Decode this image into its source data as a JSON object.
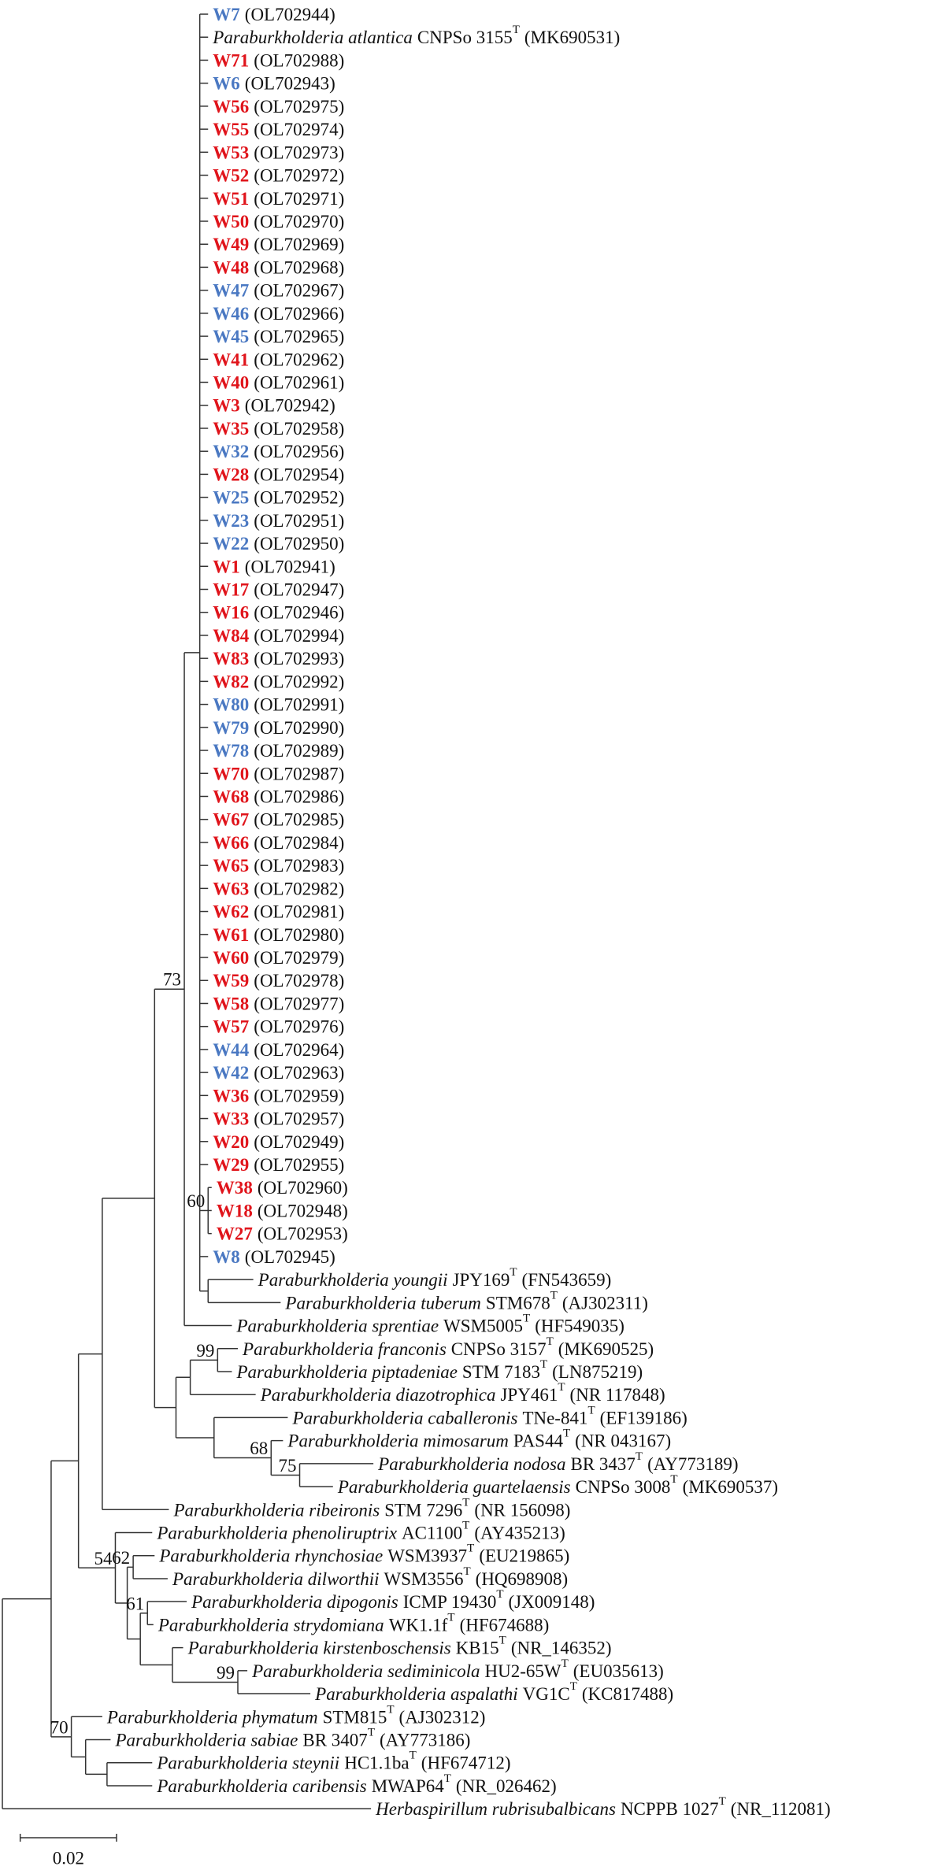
{
  "leaves": [
    {
      "name": "W7",
      "accession": "(OL702944)",
      "color": "#4a78c2"
    },
    {
      "species": "Paraburkholderia atlantica",
      "strain": "CNPSo 3155",
      "type_mark": "T",
      "accession": "(MK690531)"
    },
    {
      "name": "W71",
      "accession": "(OL702988)",
      "color": "#e0141b"
    },
    {
      "name": "W6",
      "accession": "(OL702943)",
      "color": "#4a78c2"
    },
    {
      "name": "W56",
      "accession": "(OL702975)",
      "color": "#e0141b"
    },
    {
      "name": "W55",
      "accession": "(OL702974)",
      "color": "#e0141b"
    },
    {
      "name": "W53",
      "accession": "(OL702973)",
      "color": "#e0141b"
    },
    {
      "name": "W52",
      "accession": "(OL702972)",
      "color": "#e0141b"
    },
    {
      "name": "W51",
      "accession": "(OL702971)",
      "color": "#e0141b"
    },
    {
      "name": "W50",
      "accession": "(OL702970)",
      "color": "#e0141b"
    },
    {
      "name": "W49",
      "accession": "(OL702969)",
      "color": "#e0141b"
    },
    {
      "name": "W48",
      "accession": "(OL702968)",
      "color": "#e0141b"
    },
    {
      "name": "W47",
      "accession": "(OL702967)",
      "color": "#4a78c2"
    },
    {
      "name": "W46",
      "accession": "(OL702966)",
      "color": "#4a78c2"
    },
    {
      "name": "W45",
      "accession": "(OL702965)",
      "color": "#4a78c2"
    },
    {
      "name": "W41",
      "accession": "(OL702962)",
      "color": "#e0141b"
    },
    {
      "name": "W40",
      "accession": "(OL702961)",
      "color": "#e0141b"
    },
    {
      "name": "W3",
      "accession": "(OL702942)",
      "color": "#e0141b"
    },
    {
      "name": "W35",
      "accession": "(OL702958)",
      "color": "#e0141b"
    },
    {
      "name": "W32",
      "accession": "(OL702956)",
      "color": "#4a78c2"
    },
    {
      "name": "W28",
      "accession": "(OL702954)",
      "color": "#e0141b"
    },
    {
      "name": "W25",
      "accession": "(OL702952)",
      "color": "#4a78c2"
    },
    {
      "name": "W23",
      "accession": "(OL702951)",
      "color": "#4a78c2"
    },
    {
      "name": "W22",
      "accession": "(OL702950)",
      "color": "#4a78c2"
    },
    {
      "name": "W1",
      "accession": "(OL702941)",
      "color": "#e0141b"
    },
    {
      "name": "W17",
      "accession": "(OL702947)",
      "color": "#e0141b"
    },
    {
      "name": "W16",
      "accession": "(OL702946)",
      "color": "#e0141b"
    },
    {
      "name": "W84",
      "accession": "(OL702994)",
      "color": "#e0141b"
    },
    {
      "name": "W83",
      "accession": "(OL702993)",
      "color": "#e0141b"
    },
    {
      "name": "W82",
      "accession": "(OL702992)",
      "color": "#e0141b"
    },
    {
      "name": "W80",
      "accession": "(OL702991)",
      "color": "#4a78c2"
    },
    {
      "name": "W79",
      "accession": "(OL702990)",
      "color": "#4a78c2"
    },
    {
      "name": "W78",
      "accession": "(OL702989)",
      "color": "#4a78c2"
    },
    {
      "name": "W70",
      "accession": "(OL702987)",
      "color": "#e0141b"
    },
    {
      "name": "W68",
      "accession": "(OL702986)",
      "color": "#e0141b"
    },
    {
      "name": "W67",
      "accession": "(OL702985)",
      "color": "#e0141b"
    },
    {
      "name": "W66",
      "accession": "(OL702984)",
      "color": "#e0141b"
    },
    {
      "name": "W65",
      "accession": "(OL702983)",
      "color": "#e0141b"
    },
    {
      "name": "W63",
      "accession": "(OL702982)",
      "color": "#e0141b"
    },
    {
      "name": "W62",
      "accession": "(OL702981)",
      "color": "#e0141b"
    },
    {
      "name": "W61",
      "accession": "(OL702980)",
      "color": "#e0141b"
    },
    {
      "name": "W60",
      "accession": "(OL702979)",
      "color": "#e0141b"
    },
    {
      "name": "W59",
      "accession": "(OL702978)",
      "color": "#e0141b"
    },
    {
      "name": "W58",
      "accession": "(OL702977)",
      "color": "#e0141b"
    },
    {
      "name": "W57",
      "accession": "(OL702976)",
      "color": "#e0141b"
    },
    {
      "name": "W44",
      "accession": "(OL702964)",
      "color": "#4a78c2"
    },
    {
      "name": "W42",
      "accession": "(OL702963)",
      "color": "#4a78c2"
    },
    {
      "name": "W36",
      "accession": "(OL702959)",
      "color": "#e0141b"
    },
    {
      "name": "W33",
      "accession": "(OL702957)",
      "color": "#e0141b"
    },
    {
      "name": "W20",
      "accession": "(OL702949)",
      "color": "#e0141b"
    },
    {
      "name": "W29",
      "accession": "(OL702955)",
      "color": "#e0141b"
    },
    {
      "name": "W38",
      "accession": "(OL702960)",
      "color": "#e0141b"
    },
    {
      "name": "W18",
      "accession": "(OL702948)",
      "color": "#e0141b"
    },
    {
      "name": "W27",
      "accession": "(OL702953)",
      "color": "#e0141b"
    },
    {
      "name": "W8",
      "accession": "(OL702945)",
      "color": "#4a78c2"
    },
    {
      "species": "Paraburkholderia youngii",
      "strain": "JPY169",
      "type_mark": "T",
      "accession": "(FN543659)"
    },
    {
      "species": "Paraburkholderia tuberum",
      "strain": "STM678",
      "type_mark": "T",
      "accession": "(AJ302311)"
    },
    {
      "species": "Paraburkholderia sprentiae",
      "strain": "WSM5005",
      "type_mark": "T",
      "accession": "(HF549035)"
    },
    {
      "species": "Paraburkholderia franconis",
      "strain": "CNPSo 3157",
      "type_mark": "T",
      "accession": "(MK690525)"
    },
    {
      "species": "Paraburkholderia piptadeniae",
      "strain": "STM 7183",
      "type_mark": "T",
      "accession": "(LN875219)"
    },
    {
      "species": "Paraburkholderia diazotrophica",
      "strain": "JPY461",
      "type_mark": "T",
      "accession": "(NR 117848)"
    },
    {
      "species": "Paraburkholderia caballeronis",
      "strain": "TNe-841",
      "type_mark": "T",
      "accession": "(EF139186)"
    },
    {
      "species": "Paraburkholderia mimosarum",
      "strain": "PAS44",
      "type_mark": "T",
      "accession": "(NR 043167)"
    },
    {
      "species": "Paraburkholderia nodosa",
      "strain": "BR 3437",
      "type_mark": "T",
      "accession": "(AY773189)"
    },
    {
      "species": "Paraburkholderia guartelaensis",
      "strain": "CNPSo 3008",
      "type_mark": "T",
      "accession": "(MK690537)"
    },
    {
      "species": "Paraburkholderia ribeironis",
      "strain": "STM 7296",
      "type_mark": "T",
      "accession": "(NR 156098)"
    },
    {
      "species": "Paraburkholderia phenoliruptrix",
      "strain": "AC1100",
      "type_mark": "T",
      "accession": "(AY435213)"
    },
    {
      "species": "Paraburkholderia rhynchosiae",
      "strain": "WSM3937",
      "type_mark": "T",
      "accession": "(EU219865)"
    },
    {
      "species": "Paraburkholderia dilworthii",
      "strain": "WSM3556",
      "type_mark": "T",
      "accession": "(HQ698908)"
    },
    {
      "species": "Paraburkholderia dipogonis",
      "strain": "ICMP 19430",
      "type_mark": "T",
      "accession": "(JX009148)"
    },
    {
      "species": "Paraburkholderia strydomiana",
      "strain": "WK1.1f",
      "type_mark": "T",
      "accession": "(HF674688)"
    },
    {
      "species": "Paraburkholderia kirstenboschensis",
      "strain": "KB15",
      "type_mark": "T",
      "accession": "(NR_146352)"
    },
    {
      "species": "Paraburkholderia sediminicola",
      "strain": "HU2-65W",
      "type_mark": "T",
      "accession": "(EU035613)"
    },
    {
      "species": "Paraburkholderia aspalathi",
      "strain": "VG1C",
      "type_mark": "T",
      "accession": "(KC817488)"
    },
    {
      "species": "Paraburkholderia phymatum",
      "strain": "STM815",
      "type_mark": "T",
      "accession": "(AJ302312)"
    },
    {
      "species": "Paraburkholderia sabiae",
      "strain": "BR 3407",
      "type_mark": "T",
      "accession": "(AY773186)"
    },
    {
      "species": "Paraburkholderia steynii",
      "strain": "HC1.1ba",
      "type_mark": "T",
      "accession": "(HF674712)"
    },
    {
      "species": "Paraburkholderia caribensis",
      "strain": "MWAP64",
      "type_mark": "T",
      "accession": "(NR_026462)"
    },
    {
      "species": "Herbaspirillum rubrisubalbicans",
      "strain": "NCPPB 1027",
      "type_mark": "T",
      "accession": "(NR_112081)"
    }
  ],
  "bootstrap": [
    "73",
    "60",
    "99",
    "68",
    "75",
    "62",
    "54",
    "61",
    "99",
    "70"
  ],
  "scale_bar": {
    "label": "0.02"
  }
}
